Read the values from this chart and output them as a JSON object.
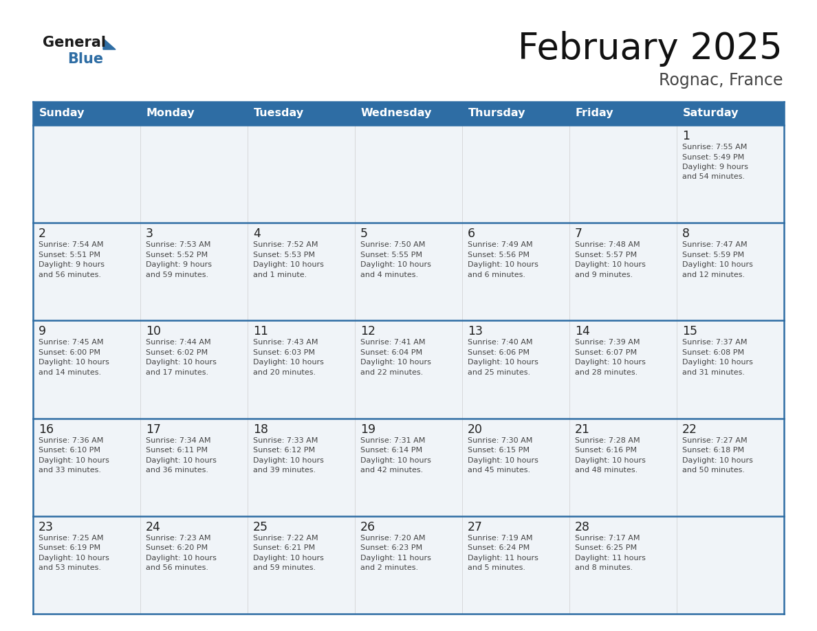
{
  "title": "February 2025",
  "subtitle": "Rognac, France",
  "header_bg": "#2e6da4",
  "header_text_color": "#ffffff",
  "days_of_week": [
    "Sunday",
    "Monday",
    "Tuesday",
    "Wednesday",
    "Thursday",
    "Friday",
    "Saturday"
  ],
  "cell_bg": "#f0f4f8",
  "border_color": "#2e6da4",
  "date_color": "#333333",
  "info_color": "#444444",
  "calendar": [
    [
      null,
      null,
      null,
      null,
      null,
      null,
      {
        "day": "1",
        "sunrise": "7:55 AM",
        "sunset": "5:49 PM",
        "daylight_hours": "9",
        "daylight_min": "54 minutes"
      }
    ],
    [
      {
        "day": "2",
        "sunrise": "7:54 AM",
        "sunset": "5:51 PM",
        "daylight_hours": "9",
        "daylight_min": "56 minutes"
      },
      {
        "day": "3",
        "sunrise": "7:53 AM",
        "sunset": "5:52 PM",
        "daylight_hours": "9",
        "daylight_min": "59 minutes"
      },
      {
        "day": "4",
        "sunrise": "7:52 AM",
        "sunset": "5:53 PM",
        "daylight_hours": "10",
        "daylight_min": "1 minute"
      },
      {
        "day": "5",
        "sunrise": "7:50 AM",
        "sunset": "5:55 PM",
        "daylight_hours": "10",
        "daylight_min": "4 minutes"
      },
      {
        "day": "6",
        "sunrise": "7:49 AM",
        "sunset": "5:56 PM",
        "daylight_hours": "10",
        "daylight_min": "6 minutes"
      },
      {
        "day": "7",
        "sunrise": "7:48 AM",
        "sunset": "5:57 PM",
        "daylight_hours": "10",
        "daylight_min": "9 minutes"
      },
      {
        "day": "8",
        "sunrise": "7:47 AM",
        "sunset": "5:59 PM",
        "daylight_hours": "10",
        "daylight_min": "12 minutes"
      }
    ],
    [
      {
        "day": "9",
        "sunrise": "7:45 AM",
        "sunset": "6:00 PM",
        "daylight_hours": "10",
        "daylight_min": "14 minutes"
      },
      {
        "day": "10",
        "sunrise": "7:44 AM",
        "sunset": "6:02 PM",
        "daylight_hours": "10",
        "daylight_min": "17 minutes"
      },
      {
        "day": "11",
        "sunrise": "7:43 AM",
        "sunset": "6:03 PM",
        "daylight_hours": "10",
        "daylight_min": "20 minutes"
      },
      {
        "day": "12",
        "sunrise": "7:41 AM",
        "sunset": "6:04 PM",
        "daylight_hours": "10",
        "daylight_min": "22 minutes"
      },
      {
        "day": "13",
        "sunrise": "7:40 AM",
        "sunset": "6:06 PM",
        "daylight_hours": "10",
        "daylight_min": "25 minutes"
      },
      {
        "day": "14",
        "sunrise": "7:39 AM",
        "sunset": "6:07 PM",
        "daylight_hours": "10",
        "daylight_min": "28 minutes"
      },
      {
        "day": "15",
        "sunrise": "7:37 AM",
        "sunset": "6:08 PM",
        "daylight_hours": "10",
        "daylight_min": "31 minutes"
      }
    ],
    [
      {
        "day": "16",
        "sunrise": "7:36 AM",
        "sunset": "6:10 PM",
        "daylight_hours": "10",
        "daylight_min": "33 minutes"
      },
      {
        "day": "17",
        "sunrise": "7:34 AM",
        "sunset": "6:11 PM",
        "daylight_hours": "10",
        "daylight_min": "36 minutes"
      },
      {
        "day": "18",
        "sunrise": "7:33 AM",
        "sunset": "6:12 PM",
        "daylight_hours": "10",
        "daylight_min": "39 minutes"
      },
      {
        "day": "19",
        "sunrise": "7:31 AM",
        "sunset": "6:14 PM",
        "daylight_hours": "10",
        "daylight_min": "42 minutes"
      },
      {
        "day": "20",
        "sunrise": "7:30 AM",
        "sunset": "6:15 PM",
        "daylight_hours": "10",
        "daylight_min": "45 minutes"
      },
      {
        "day": "21",
        "sunrise": "7:28 AM",
        "sunset": "6:16 PM",
        "daylight_hours": "10",
        "daylight_min": "48 minutes"
      },
      {
        "day": "22",
        "sunrise": "7:27 AM",
        "sunset": "6:18 PM",
        "daylight_hours": "10",
        "daylight_min": "50 minutes"
      }
    ],
    [
      {
        "day": "23",
        "sunrise": "7:25 AM",
        "sunset": "6:19 PM",
        "daylight_hours": "10",
        "daylight_min": "53 minutes"
      },
      {
        "day": "24",
        "sunrise": "7:23 AM",
        "sunset": "6:20 PM",
        "daylight_hours": "10",
        "daylight_min": "56 minutes"
      },
      {
        "day": "25",
        "sunrise": "7:22 AM",
        "sunset": "6:21 PM",
        "daylight_hours": "10",
        "daylight_min": "59 minutes"
      },
      {
        "day": "26",
        "sunrise": "7:20 AM",
        "sunset": "6:23 PM",
        "daylight_hours": "11",
        "daylight_min": "2 minutes"
      },
      {
        "day": "27",
        "sunrise": "7:19 AM",
        "sunset": "6:24 PM",
        "daylight_hours": "11",
        "daylight_min": "5 minutes"
      },
      {
        "day": "28",
        "sunrise": "7:17 AM",
        "sunset": "6:25 PM",
        "daylight_hours": "11",
        "daylight_min": "8 minutes"
      },
      null
    ]
  ]
}
